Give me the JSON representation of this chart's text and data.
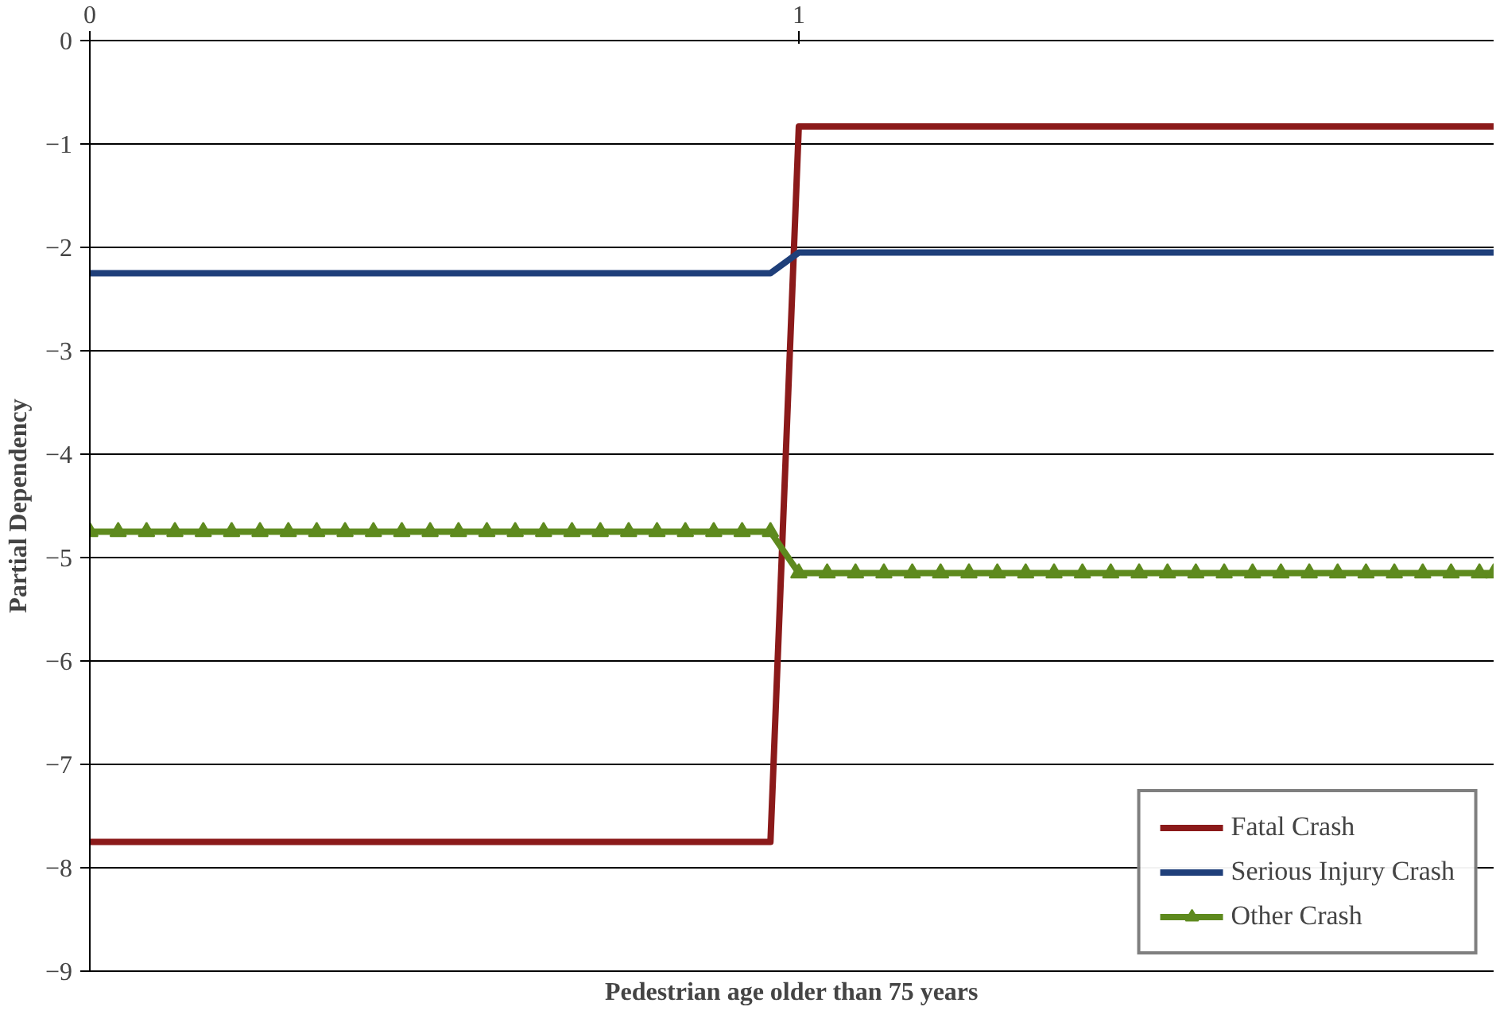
{
  "chart_data": {
    "type": "line",
    "xlabel": "Pedestrian age older than 75 years",
    "ylabel": "Partial Dependency",
    "x": [
      0,
      0.04,
      0.08,
      0.12,
      0.16,
      0.2,
      0.24,
      0.28,
      0.32,
      0.36,
      0.4,
      0.44,
      0.48,
      0.52,
      0.56,
      0.6,
      0.64,
      0.68,
      0.72,
      0.76,
      0.8,
      0.84,
      0.88,
      0.92,
      0.96,
      1,
      1.04,
      1.08,
      1.12,
      1.16,
      1.2,
      1.24,
      1.28,
      1.32,
      1.36,
      1.4,
      1.44,
      1.48,
      1.52,
      1.56,
      1.6,
      1.64,
      1.68,
      1.72,
      1.76,
      1.8,
      1.84,
      1.88,
      1.92,
      1.96,
      1.98
    ],
    "series": [
      {
        "name": "Fatal Crash",
        "color": "#8b1a1a",
        "marker": "none",
        "values": [
          -7.75,
          -7.75,
          -7.75,
          -7.75,
          -7.75,
          -7.75,
          -7.75,
          -7.75,
          -7.75,
          -7.75,
          -7.75,
          -7.75,
          -7.75,
          -7.75,
          -7.75,
          -7.75,
          -7.75,
          -7.75,
          -7.75,
          -7.75,
          -7.75,
          -7.75,
          -7.75,
          -7.75,
          -7.75,
          -0.83,
          -0.83,
          -0.83,
          -0.83,
          -0.83,
          -0.83,
          -0.83,
          -0.83,
          -0.83,
          -0.83,
          -0.83,
          -0.83,
          -0.83,
          -0.83,
          -0.83,
          -0.83,
          -0.83,
          -0.83,
          -0.83,
          -0.83,
          -0.83,
          -0.83,
          -0.83,
          -0.83,
          -0.83,
          -0.83
        ]
      },
      {
        "name": "Serious Injury Crash",
        "color": "#1f3f7a",
        "marker": "none",
        "values": [
          -2.25,
          -2.25,
          -2.25,
          -2.25,
          -2.25,
          -2.25,
          -2.25,
          -2.25,
          -2.25,
          -2.25,
          -2.25,
          -2.25,
          -2.25,
          -2.25,
          -2.25,
          -2.25,
          -2.25,
          -2.25,
          -2.25,
          -2.25,
          -2.25,
          -2.25,
          -2.25,
          -2.25,
          -2.25,
          -2.05,
          -2.05,
          -2.05,
          -2.05,
          -2.05,
          -2.05,
          -2.05,
          -2.05,
          -2.05,
          -2.05,
          -2.05,
          -2.05,
          -2.05,
          -2.05,
          -2.05,
          -2.05,
          -2.05,
          -2.05,
          -2.05,
          -2.05,
          -2.05,
          -2.05,
          -2.05,
          -2.05,
          -2.05,
          -2.05
        ]
      },
      {
        "name": "Other Crash",
        "color": "#5e8a1e",
        "marker": "triangle",
        "values": [
          -4.75,
          -4.75,
          -4.75,
          -4.75,
          -4.75,
          -4.75,
          -4.75,
          -4.75,
          -4.75,
          -4.75,
          -4.75,
          -4.75,
          -4.75,
          -4.75,
          -4.75,
          -4.75,
          -4.75,
          -4.75,
          -4.75,
          -4.75,
          -4.75,
          -4.75,
          -4.75,
          -4.75,
          -4.75,
          -5.15,
          -5.15,
          -5.15,
          -5.15,
          -5.15,
          -5.15,
          -5.15,
          -5.15,
          -5.15,
          -5.15,
          -5.15,
          -5.15,
          -5.15,
          -5.15,
          -5.15,
          -5.15,
          -5.15,
          -5.15,
          -5.15,
          -5.15,
          -5.15,
          -5.15,
          -5.15,
          -5.15,
          -5.15,
          -5.15
        ]
      }
    ],
    "xlim": [
      0,
      1.98
    ],
    "xticks": [
      0,
      1
    ],
    "ylim": [
      -9,
      0
    ],
    "yticks": [
      -9,
      -8,
      -7,
      -6,
      -5,
      -4,
      -3,
      -2,
      -1,
      0
    ],
    "grid": "y",
    "legend": "bottom right"
  }
}
